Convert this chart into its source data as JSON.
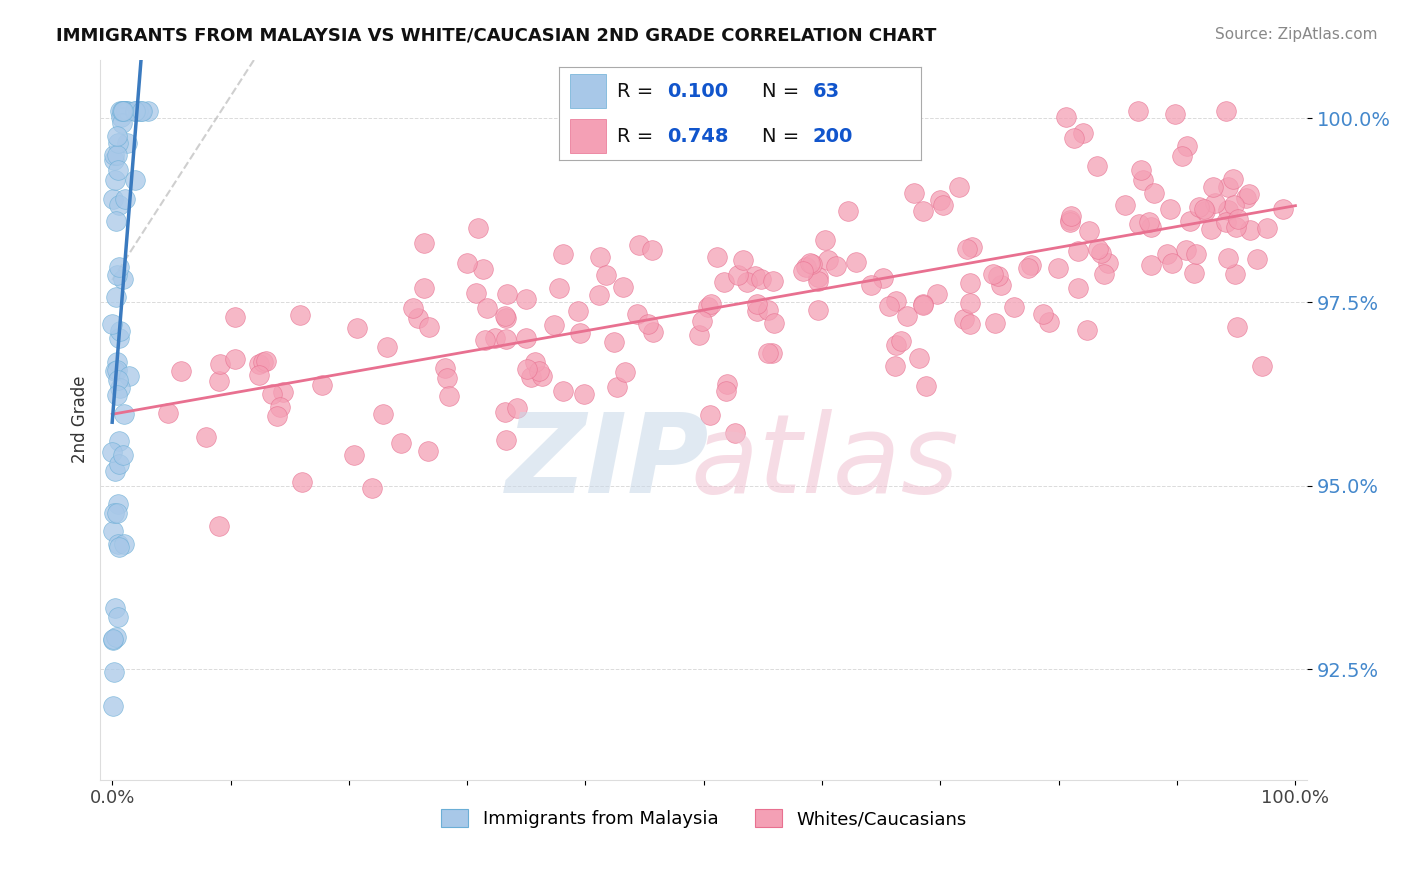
{
  "title": "IMMIGRANTS FROM MALAYSIA VS WHITE/CAUCASIAN 2ND GRADE CORRELATION CHART",
  "source": "Source: ZipAtlas.com",
  "ylabel": "2nd Grade",
  "xlim": [
    -0.01,
    1.01
  ],
  "ylim": [
    0.91,
    1.008
  ],
  "yticks": [
    0.925,
    0.95,
    0.975,
    1.0
  ],
  "ytick_labels": [
    "92.5%",
    "95.0%",
    "97.5%",
    "100.0%"
  ],
  "xtick_positions": [
    0.0,
    0.1,
    0.2,
    0.3,
    0.4,
    0.5,
    0.6,
    0.7,
    0.8,
    0.9,
    1.0
  ],
  "xtick_labels": [
    "0.0%",
    "",
    "",
    "",
    "",
    "",
    "",
    "",
    "",
    "",
    "100.0%"
  ],
  "blue_R": 0.1,
  "blue_N": 63,
  "pink_R": 0.748,
  "pink_N": 200,
  "blue_color": "#a8c8e8",
  "pink_color": "#f4a0b5",
  "blue_edge_color": "#6baed6",
  "pink_edge_color": "#e87090",
  "blue_line_color": "#3a7abf",
  "pink_line_color": "#e87090",
  "legend_label_blue": "Immigrants from Malaysia",
  "legend_label_pink": "Whites/Caucasians",
  "background_color": "#ffffff",
  "grid_color": "#cccccc",
  "title_color": "#111111",
  "source_color": "#888888",
  "ytick_color": "#4488cc",
  "legend_text_color": "#111111",
  "legend_value_color": "#1155cc"
}
